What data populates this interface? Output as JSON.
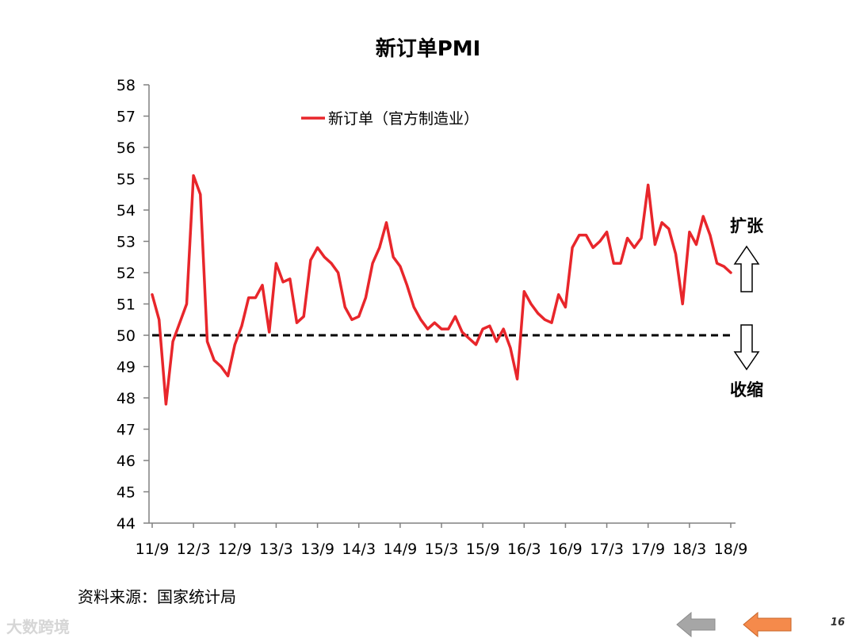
{
  "chart_data": {
    "type": "line",
    "title": "新订单PMI",
    "xlabel": "",
    "ylabel": "",
    "ylim": [
      44,
      58
    ],
    "yticks": [
      44,
      45,
      46,
      47,
      48,
      49,
      50,
      51,
      52,
      53,
      54,
      55,
      56,
      57,
      58
    ],
    "xtick_labels": [
      "11/9",
      "12/3",
      "12/9",
      "13/3",
      "13/9",
      "14/3",
      "14/9",
      "15/3",
      "15/9",
      "16/3",
      "16/9",
      "17/3",
      "17/9",
      "18/3",
      "18/9"
    ],
    "legend_position": "top-center",
    "reference_line": 50,
    "series": [
      {
        "name": "新订单（官方制造业）",
        "color": "#e8262b",
        "start": "11/9",
        "values": [
          51.3,
          50.5,
          47.8,
          49.8,
          50.4,
          51.0,
          55.1,
          54.5,
          49.8,
          49.2,
          49.0,
          48.7,
          49.7,
          50.3,
          51.2,
          51.2,
          51.6,
          50.1,
          52.3,
          51.7,
          51.8,
          50.4,
          50.6,
          52.4,
          52.8,
          52.5,
          52.3,
          52.0,
          50.9,
          50.5,
          50.6,
          51.2,
          52.3,
          52.8,
          53.6,
          52.5,
          52.2,
          51.6,
          50.9,
          50.5,
          50.2,
          50.4,
          50.2,
          50.2,
          50.6,
          50.1,
          49.9,
          49.7,
          50.2,
          50.3,
          49.8,
          50.2,
          49.6,
          48.6,
          51.4,
          51.0,
          50.7,
          50.5,
          50.4,
          51.3,
          50.9,
          52.8,
          53.2,
          53.2,
          52.8,
          53.0,
          53.3,
          52.3,
          52.3,
          53.1,
          52.8,
          53.1,
          54.8,
          52.9,
          53.6,
          53.4,
          52.6,
          51.0,
          53.3,
          52.9,
          53.8,
          53.2,
          52.3,
          52.2,
          52.0
        ]
      }
    ],
    "annotations": {
      "expand": "扩张",
      "contract": "收缩"
    }
  },
  "source": "资料来源：国家统计局",
  "page_number": "16",
  "watermark": "大数跨境",
  "colors": {
    "line": "#e8262b",
    "axis": "#808080",
    "nav_gray": "#a6a6a6",
    "nav_orange": "#f58a4b"
  }
}
